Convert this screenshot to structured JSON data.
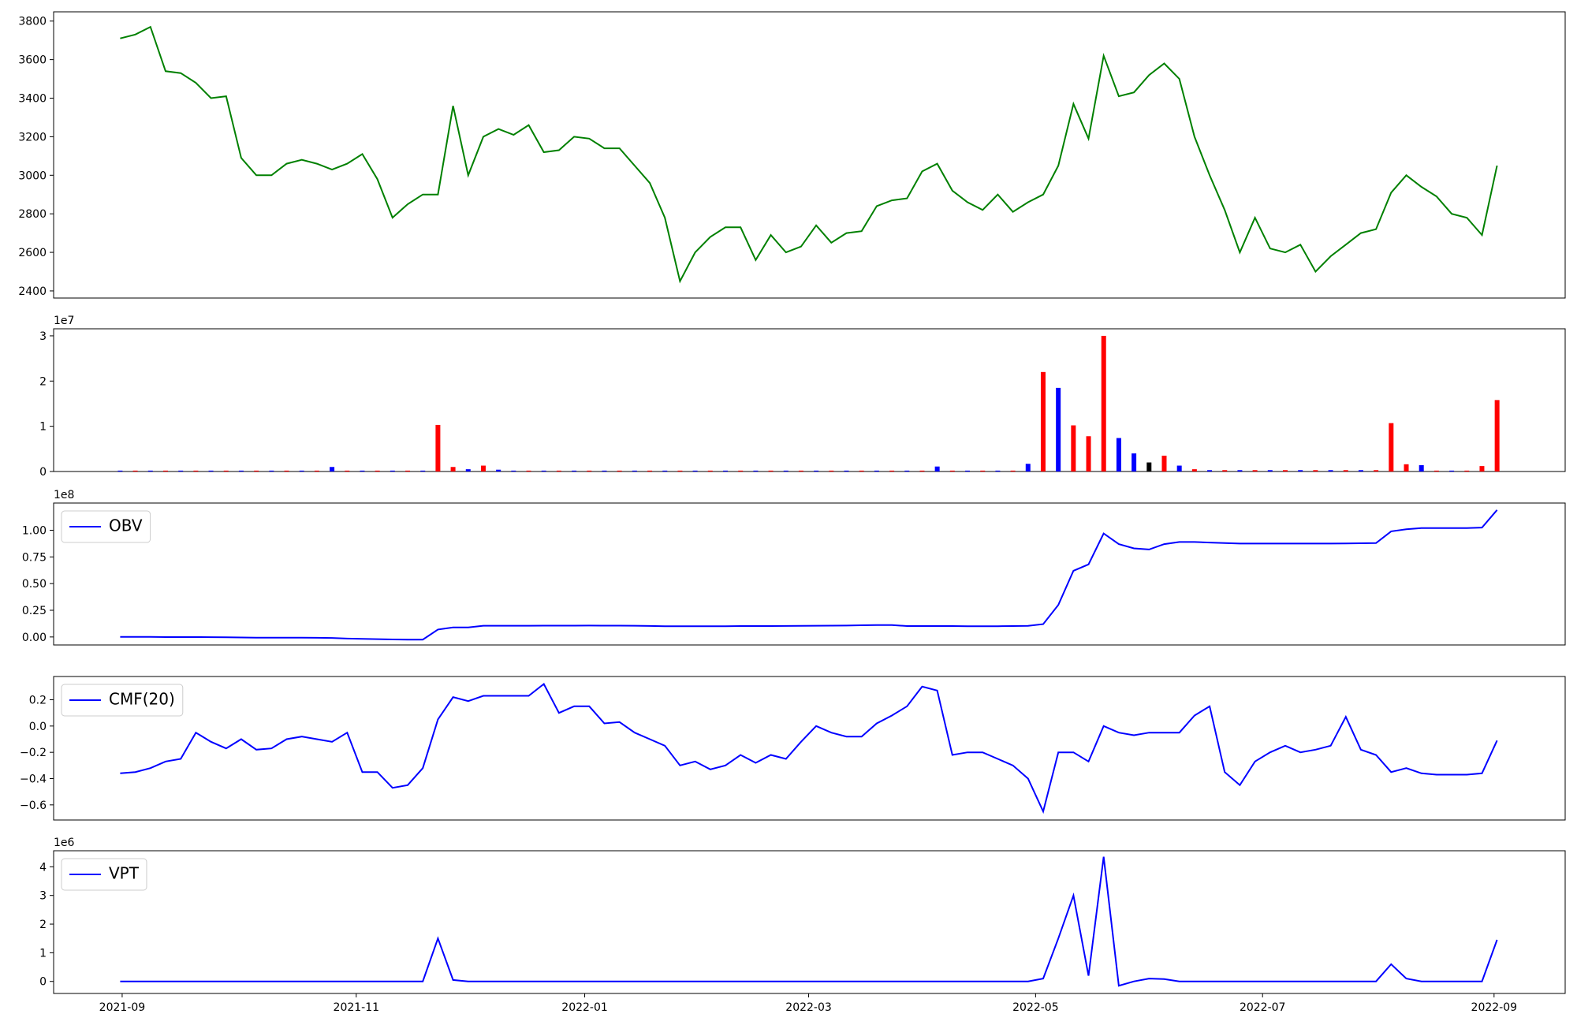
{
  "chart_data": [
    {
      "type": "line",
      "color": "green",
      "xlim": [
        -4.4,
        95.5
      ],
      "ylim": [
        2363,
        3848
      ],
      "yticks": [
        2400,
        2600,
        2800,
        3000,
        3200,
        3400,
        3600,
        3800
      ],
      "values": [
        3710,
        3730,
        3770,
        3540,
        3530,
        3480,
        3400,
        3410,
        3090,
        3000,
        3000,
        3060,
        3080,
        3060,
        3030,
        3060,
        3110,
        2980,
        2780,
        2850,
        2900,
        2900,
        3360,
        3000,
        3200,
        3240,
        3210,
        3260,
        3120,
        3130,
        3200,
        3190,
        3140,
        3140,
        3050,
        2960,
        2780,
        2450,
        2600,
        2680,
        2730,
        2730,
        2560,
        2690,
        2600,
        2630,
        2740,
        2650,
        2700,
        2710,
        2840,
        2870,
        2880,
        3020,
        3060,
        2920,
        2860,
        2820,
        2900,
        2810,
        2860,
        2900,
        3050,
        3370,
        3190,
        3620,
        3410,
        3430,
        3520,
        3580,
        3500,
        3200,
        3000,
        2820,
        2600,
        2780,
        2620,
        2600,
        2640,
        2500,
        2580,
        2640,
        2700,
        2720,
        2910,
        3000,
        2940,
        2890,
        2800,
        2780,
        2690,
        3050
      ]
    },
    {
      "type": "bar",
      "xlim": [
        -4.4,
        95.5
      ],
      "ylim": [
        0,
        31560000
      ],
      "y_offset": "1e7",
      "yticks": [
        0,
        {
          "value": 10000000,
          "label": "1"
        },
        {
          "value": 20000000,
          "label": "2"
        },
        {
          "value": 30000000,
          "label": "3"
        }
      ],
      "values": [
        200000,
        200000,
        200000,
        200000,
        200000,
        200000,
        200000,
        200000,
        200000,
        200000,
        200000,
        200000,
        200000,
        200000,
        1000000,
        200000,
        200000,
        200000,
        200000,
        200000,
        200000,
        10300000,
        1000000,
        500000,
        1300000,
        400000,
        200000,
        200000,
        200000,
        200000,
        200000,
        200000,
        200000,
        200000,
        200000,
        200000,
        200000,
        200000,
        200000,
        200000,
        200000,
        200000,
        200000,
        200000,
        200000,
        200000,
        200000,
        200000,
        200000,
        200000,
        200000,
        200000,
        200000,
        200000,
        1100000,
        200000,
        200000,
        200000,
        200000,
        200000,
        1700000,
        22000000,
        18500000,
        10200000,
        7800000,
        30000000,
        7400000,
        4000000,
        2000000,
        3500000,
        1300000,
        500000,
        300000,
        300000,
        300000,
        300000,
        300000,
        300000,
        300000,
        300000,
        300000,
        300000,
        300000,
        300000,
        10700000,
        1600000,
        1400000,
        200000,
        200000,
        200000,
        1200000,
        15800000
      ],
      "colors": [
        "blue",
        "red",
        "blue",
        "red",
        "blue",
        "red",
        "blue",
        "red",
        "blue",
        "red",
        "blue",
        "red",
        "blue",
        "red",
        "blue",
        "red",
        "blue",
        "red",
        "blue",
        "red",
        "blue",
        "red",
        "red",
        "blue",
        "red",
        "blue",
        "blue",
        "red",
        "blue",
        "red",
        "blue",
        "red",
        "blue",
        "red",
        "blue",
        "red",
        "blue",
        "red",
        "blue",
        "red",
        "blue",
        "red",
        "blue",
        "red",
        "blue",
        "red",
        "blue",
        "red",
        "blue",
        "red",
        "blue",
        "red",
        "blue",
        "red",
        "blue",
        "red",
        "blue",
        "red",
        "blue",
        "red",
        "blue",
        "red",
        "blue",
        "red",
        "red",
        "red",
        "blue",
        "blue",
        "black",
        "red",
        "blue",
        "red",
        "blue",
        "red",
        "blue",
        "red",
        "blue",
        "red",
        "blue",
        "red",
        "blue",
        "red",
        "blue",
        "red",
        "red",
        "red",
        "blue",
        "red",
        "blue",
        "red",
        "red",
        "red"
      ]
    },
    {
      "type": "line",
      "xlim": [
        -4.4,
        95.5
      ],
      "ylim": [
        -7500000,
        125500000
      ],
      "y_offset": "1e8",
      "legend": "upper left",
      "yticks": [
        {
          "value": 0,
          "label": "0.00"
        },
        {
          "value": 25000000,
          "label": "0.25"
        },
        {
          "value": 50000000,
          "label": "0.50"
        },
        {
          "value": 75000000,
          "label": "0.75"
        },
        {
          "value": 100000000,
          "label": "1.00"
        }
      ],
      "series": [
        {
          "name": "OBV",
          "color": "blue",
          "values": [
            0,
            0,
            0,
            -100000,
            -100000,
            -100000,
            -200000,
            -300000,
            -500000,
            -600000,
            -600000,
            -700000,
            -700000,
            -800000,
            -900000,
            -1500000,
            -1800000,
            -2000000,
            -2300000,
            -2500000,
            -2500000,
            7000000,
            9000000,
            9000000,
            10500000,
            10500000,
            10500000,
            10500000,
            10600000,
            10600000,
            10600000,
            10700000,
            10600000,
            10600000,
            10500000,
            10300000,
            10000000,
            10000000,
            10100000,
            10100000,
            10100000,
            10200000,
            10200000,
            10200000,
            10300000,
            10400000,
            10500000,
            10600000,
            10700000,
            11000000,
            11200000,
            11200000,
            10200000,
            10200000,
            10200000,
            10200000,
            10100000,
            10100000,
            10100000,
            10200000,
            10400000,
            12000000,
            30000000,
            62000000,
            68000000,
            97000000,
            87000000,
            83000000,
            82000000,
            87000000,
            89000000,
            89000000,
            88500000,
            88000000,
            87500000,
            87500000,
            87500000,
            87500000,
            87500000,
            87500000,
            87500000,
            87600000,
            87800000,
            88000000,
            99000000,
            101000000,
            102000000,
            102000000,
            102000000,
            102000000,
            102500000,
            119000000
          ]
        }
      ]
    },
    {
      "type": "line",
      "xlim": [
        -4.4,
        95.5
      ],
      "ylim": [
        -0.715,
        0.377
      ],
      "legend": "upper left",
      "yticks": [
        {
          "value": -0.6,
          "label": "−0.6"
        },
        {
          "value": -0.4,
          "label": "−0.4"
        },
        {
          "value": -0.2,
          "label": "−0.2"
        },
        {
          "value": 0,
          "label": "0.0"
        },
        0.2
      ],
      "series": [
        {
          "name": "CMF(20)",
          "color": "blue",
          "values": [
            -0.36,
            -0.35,
            -0.32,
            -0.27,
            -0.25,
            -0.05,
            -0.12,
            -0.17,
            -0.1,
            -0.18,
            -0.17,
            -0.1,
            -0.08,
            -0.1,
            -0.12,
            -0.05,
            -0.35,
            -0.35,
            -0.47,
            -0.45,
            -0.32,
            0.05,
            0.22,
            0.19,
            0.23,
            0.23,
            0.23,
            0.23,
            0.32,
            0.1,
            0.15,
            0.15,
            0.02,
            0.03,
            -0.05,
            -0.1,
            -0.15,
            -0.3,
            -0.27,
            -0.33,
            -0.3,
            -0.22,
            -0.28,
            -0.22,
            -0.25,
            -0.12,
            0.0,
            -0.05,
            -0.08,
            -0.08,
            0.02,
            0.08,
            0.15,
            0.3,
            0.27,
            -0.22,
            -0.2,
            -0.2,
            -0.25,
            -0.3,
            -0.4,
            -0.65,
            -0.2,
            -0.2,
            -0.27,
            0.0,
            -0.05,
            -0.07,
            -0.05,
            -0.05,
            -0.05,
            0.08,
            0.15,
            -0.35,
            -0.45,
            -0.27,
            -0.2,
            -0.15,
            -0.2,
            -0.18,
            -0.15,
            0.07,
            -0.18,
            -0.22,
            -0.35,
            -0.32,
            -0.36,
            -0.37,
            -0.37,
            -0.37,
            -0.36,
            -0.11
          ]
        }
      ]
    },
    {
      "type": "line",
      "xlim": [
        -4.4,
        95.5
      ],
      "ylim": [
        -420000,
        4560000
      ],
      "y_offset": "1e6",
      "legend": "upper left",
      "yticks": [
        0,
        {
          "value": 1000000,
          "label": "1"
        },
        {
          "value": 2000000,
          "label": "2"
        },
        {
          "value": 3000000,
          "label": "3"
        },
        {
          "value": 4000000,
          "label": "4"
        }
      ],
      "xticks": [
        {
          "value": 0.13,
          "label": "2021-09"
        },
        {
          "value": 15.6,
          "label": "2021-11"
        },
        {
          "value": 30.7,
          "label": "2022-01"
        },
        {
          "value": 45.5,
          "label": "2022-03"
        },
        {
          "value": 60.5,
          "label": "2022-05"
        },
        {
          "value": 75.5,
          "label": "2022-07"
        },
        {
          "value": 90.8,
          "label": "2022-09"
        }
      ],
      "series": [
        {
          "name": "VPT",
          "color": "blue",
          "values": [
            0,
            0,
            0,
            0,
            0,
            0,
            0,
            0,
            0,
            0,
            0,
            0,
            0,
            0,
            0,
            0,
            0,
            0,
            0,
            0,
            0,
            1500000,
            50000,
            0,
            0,
            0,
            0,
            0,
            0,
            0,
            0,
            0,
            0,
            0,
            0,
            0,
            0,
            0,
            0,
            0,
            0,
            0,
            0,
            0,
            0,
            0,
            0,
            0,
            0,
            0,
            0,
            0,
            0,
            0,
            0,
            0,
            0,
            0,
            0,
            0,
            0,
            100000,
            1500000,
            3000000,
            200000,
            4350000,
            -150000,
            0,
            100000,
            80000,
            0,
            0,
            0,
            0,
            0,
            0,
            0,
            0,
            0,
            0,
            0,
            0,
            0,
            0,
            600000,
            100000,
            0,
            0,
            0,
            0,
            0,
            1450000
          ]
        }
      ]
    }
  ]
}
